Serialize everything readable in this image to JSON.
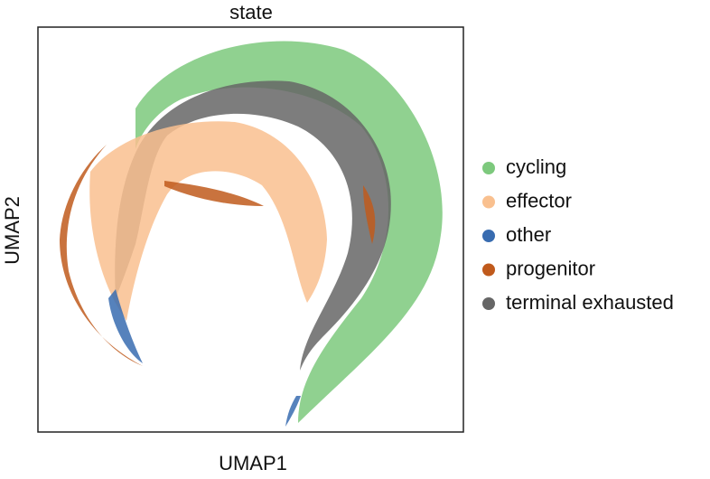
{
  "chart_data": {
    "type": "scatter",
    "title": "state",
    "xlabel": "UMAP1",
    "ylabel": "UMAP2",
    "series": [
      {
        "name": "cycling",
        "color": "#7dc97d"
      },
      {
        "name": "effector",
        "color": "#f9c08f"
      },
      {
        "name": "other",
        "color": "#386cb0"
      },
      {
        "name": "progenitor",
        "color": "#c05a1c"
      },
      {
        "name": "terminal exhausted",
        "color": "#666666"
      }
    ]
  }
}
